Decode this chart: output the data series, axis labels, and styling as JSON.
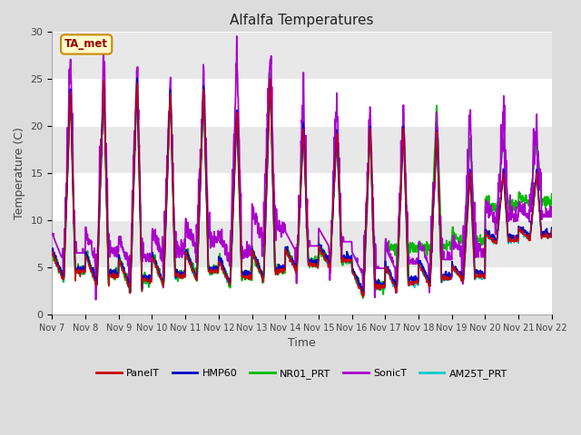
{
  "title": "Alfalfa Temperatures",
  "xlabel": "Time",
  "ylabel": "Temperature (C)",
  "ylim": [
    0,
    30
  ],
  "background_color": "#dcdcdc",
  "annotation_text": "TA_met",
  "annotation_color": "#990000",
  "annotation_bg": "#ffffcc",
  "annotation_border": "#cc8800",
  "series": {
    "PanelT": {
      "color": "#cc0000",
      "lw": 1.0,
      "zorder": 7
    },
    "HMP60": {
      "color": "#0000cc",
      "lw": 1.2,
      "zorder": 6
    },
    "NR01_PRT": {
      "color": "#00bb00",
      "lw": 1.3,
      "zorder": 4
    },
    "SonicT": {
      "color": "#aa00cc",
      "lw": 1.3,
      "zorder": 5
    },
    "AM25T_PRT": {
      "color": "#00cccc",
      "lw": 1.4,
      "zorder": 3
    }
  },
  "xtick_labels": [
    "Nov 7",
    "Nov 8",
    "Nov 9",
    "Nov 10",
    "Nov 11",
    "Nov 12",
    "Nov 13",
    "Nov 14",
    "Nov 15",
    "Nov 16",
    "Nov 17",
    "Nov 18",
    "Nov 19",
    "Nov 20",
    "Nov 21",
    "Nov 22"
  ],
  "ytick_labels": [
    0,
    5,
    10,
    15,
    20,
    25,
    30
  ],
  "band_colors": [
    "#ffffff",
    "#e8e8e8"
  ]
}
